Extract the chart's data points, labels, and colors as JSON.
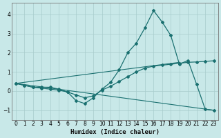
{
  "xlabel": "Humidex (Indice chaleur)",
  "xlim": [
    -0.5,
    23.5
  ],
  "ylim": [
    -1.5,
    4.6
  ],
  "yticks": [
    -1,
    0,
    1,
    2,
    3,
    4
  ],
  "xticks": [
    0,
    1,
    2,
    3,
    4,
    5,
    6,
    7,
    8,
    9,
    10,
    11,
    12,
    13,
    14,
    15,
    16,
    17,
    18,
    19,
    20,
    21,
    22,
    23
  ],
  "bg_color": "#c8e8e8",
  "grid_color": "#a8cccc",
  "line_color": "#1a7070",
  "line1_x": [
    0,
    1,
    2,
    3,
    4,
    5,
    6,
    7,
    8,
    9,
    10,
    11,
    12,
    13,
    14,
    15,
    16,
    17,
    18,
    19,
    20,
    21,
    22,
    23
  ],
  "line1_y": [
    0.4,
    0.3,
    0.2,
    0.2,
    0.2,
    0.1,
    -0.05,
    -0.5,
    -0.65,
    -0.35,
    0.1,
    0.45,
    1.1,
    2.0,
    2.5,
    3.3,
    4.2,
    3.6,
    2.9,
    1.4,
    1.6,
    0.35,
    -0.95,
    -1.0
  ],
  "line2_x": [
    0,
    23
  ],
  "line2_y": [
    0.4,
    -1.0
  ],
  "line3_x": [
    0,
    19
  ],
  "line3_y": [
    0.4,
    1.5
  ],
  "line4_x": [
    0,
    1,
    2,
    3,
    4,
    5,
    6,
    7,
    8,
    9,
    10,
    11,
    12,
    13,
    14,
    15,
    16,
    17,
    18,
    19,
    20,
    21,
    22,
    23
  ],
  "line4_y": [
    0.4,
    0.3,
    0.2,
    0.15,
    0.1,
    0.05,
    -0.05,
    -0.2,
    -0.35,
    -0.25,
    0.05,
    0.25,
    0.5,
    0.75,
    1.0,
    1.2,
    1.3,
    1.35,
    1.4,
    1.45,
    1.5,
    1.52,
    1.55,
    1.58
  ]
}
